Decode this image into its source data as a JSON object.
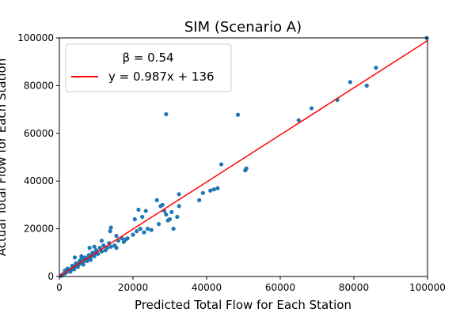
{
  "chart_data": {
    "type": "scatter",
    "title": "SIM (Scenario A)",
    "xlabel": "Predicted Total Flow for Each Station",
    "ylabel": "Actual Total Flow for Each Station",
    "xlim": [
      0,
      100000
    ],
    "ylim": [
      0,
      100000
    ],
    "xticks": [
      "0",
      "20000",
      "40000",
      "60000",
      "80000",
      "100000"
    ],
    "yticks": [
      "0",
      "20000",
      "40000",
      "60000",
      "80000",
      "100000"
    ],
    "grid": false,
    "legend": {
      "placement": "top-left",
      "header": "β = 0.54",
      "entries": [
        {
          "label": "y = 0.987x + 136",
          "color": "#ff0000"
        }
      ]
    },
    "series": [
      {
        "type": "scatter",
        "color": "#1f77b4",
        "points": [
          [
            500,
            300
          ],
          [
            700,
            600
          ],
          [
            900,
            800
          ],
          [
            1100,
            1000
          ],
          [
            1300,
            1200
          ],
          [
            1500,
            1400
          ],
          [
            1700,
            1500
          ],
          [
            1900,
            1800
          ],
          [
            2100,
            2000
          ],
          [
            2300,
            2300
          ],
          [
            2500,
            2400
          ],
          [
            2700,
            2600
          ],
          [
            2900,
            2800
          ],
          [
            3100,
            3000
          ],
          [
            3300,
            3100
          ],
          [
            3500,
            3400
          ],
          [
            3700,
            3500
          ],
          [
            3900,
            3800
          ],
          [
            4100,
            4000
          ],
          [
            4300,
            4300
          ],
          [
            4500,
            4400
          ],
          [
            4700,
            4600
          ],
          [
            4900,
            4800
          ],
          [
            5100,
            5000
          ],
          [
            5300,
            5200
          ],
          [
            5500,
            5400
          ],
          [
            5700,
            5600
          ],
          [
            5900,
            5800
          ],
          [
            6100,
            6000
          ],
          [
            6300,
            6200
          ],
          [
            6500,
            6400
          ],
          [
            6700,
            6600
          ],
          [
            6900,
            6800
          ],
          [
            7100,
            7000
          ],
          [
            7300,
            7200
          ],
          [
            7500,
            7400
          ],
          [
            7700,
            7600
          ],
          [
            7900,
            7800
          ],
          [
            8100,
            8000
          ],
          [
            8300,
            8200
          ],
          [
            8500,
            8400
          ],
          [
            8700,
            8600
          ],
          [
            8900,
            8800
          ],
          [
            9100,
            9000
          ],
          [
            9300,
            9200
          ],
          [
            9500,
            9400
          ],
          [
            9700,
            9600
          ],
          [
            9900,
            9800
          ],
          [
            1500,
            2500
          ],
          [
            2200,
            3300
          ],
          [
            3000,
            2000
          ],
          [
            3500,
            4500
          ],
          [
            4000,
            3000
          ],
          [
            4500,
            5500
          ],
          [
            5000,
            4000
          ],
          [
            5500,
            6500
          ],
          [
            6000,
            7500
          ],
          [
            6500,
            5000
          ],
          [
            7000,
            8000
          ],
          [
            7500,
            6500
          ],
          [
            8000,
            9000
          ],
          [
            8500,
            7000
          ],
          [
            9000,
            10000
          ],
          [
            9500,
            8500
          ],
          [
            10000,
            11000
          ],
          [
            10500,
            9500
          ],
          [
            11000,
            12000
          ],
          [
            11500,
            10500
          ],
          [
            12000,
            13000
          ],
          [
            12500,
            11000
          ],
          [
            13000,
            12000
          ],
          [
            13500,
            14000
          ],
          [
            14000,
            12500
          ],
          [
            15000,
            13000
          ],
          [
            15500,
            12000
          ],
          [
            16000,
            15000
          ],
          [
            17000,
            16000
          ],
          [
            18000,
            15500
          ],
          [
            4200,
            8000
          ],
          [
            6000,
            8500
          ],
          [
            8200,
            12000
          ],
          [
            9500,
            12500
          ],
          [
            11500,
            15000
          ],
          [
            13800,
            19000
          ],
          [
            14000,
            20500
          ],
          [
            15500,
            17000
          ],
          [
            17500,
            14500
          ],
          [
            18500,
            16000
          ],
          [
            20000,
            17500
          ],
          [
            20500,
            24000
          ],
          [
            21000,
            19000
          ],
          [
            21500,
            28000
          ],
          [
            22000,
            20000
          ],
          [
            22500,
            25000
          ],
          [
            23000,
            18500
          ],
          [
            23500,
            27500
          ],
          [
            24000,
            20000
          ],
          [
            25000,
            19500
          ],
          [
            26500,
            32000
          ],
          [
            27000,
            22000
          ],
          [
            27500,
            29500
          ],
          [
            28000,
            30000
          ],
          [
            28500,
            27500
          ],
          [
            29000,
            26000
          ],
          [
            29500,
            23500
          ],
          [
            30000,
            24000
          ],
          [
            30500,
            27000
          ],
          [
            31000,
            20000
          ],
          [
            32000,
            25000
          ],
          [
            32500,
            29500
          ],
          [
            32500,
            34500
          ],
          [
            38000,
            32000
          ],
          [
            39000,
            35000
          ],
          [
            41000,
            36000
          ],
          [
            42000,
            36500
          ],
          [
            43000,
            37000
          ],
          [
            44000,
            47000
          ],
          [
            50500,
            44500
          ],
          [
            50800,
            45300
          ],
          [
            65000,
            65500
          ],
          [
            68500,
            70500
          ],
          [
            75500,
            74000
          ],
          [
            79000,
            81500
          ],
          [
            83500,
            80000
          ],
          [
            86000,
            87500
          ],
          [
            29000,
            68000
          ],
          [
            48500,
            67800
          ],
          [
            99800,
            100000
          ]
        ]
      },
      {
        "type": "line",
        "name": "y = 0.987x + 136",
        "color": "#ff0000",
        "slope": 0.987,
        "intercept": 136,
        "x_range": [
          0,
          100000
        ]
      }
    ]
  }
}
